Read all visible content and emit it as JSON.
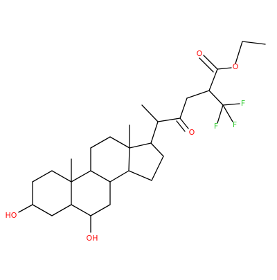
{
  "colors": {
    "bond": "#000000",
    "oxygen": "#ff0d0d",
    "fluorine": "#33cc33",
    "background": "#ffffff"
  },
  "atoms": {
    "o_ester_carbonyl": "O",
    "o_ester": "O",
    "o_ketone": "O",
    "f1": "F",
    "f2": "F",
    "f3": "F",
    "oh_left": "HO",
    "oh_bottom": "OH"
  }
}
